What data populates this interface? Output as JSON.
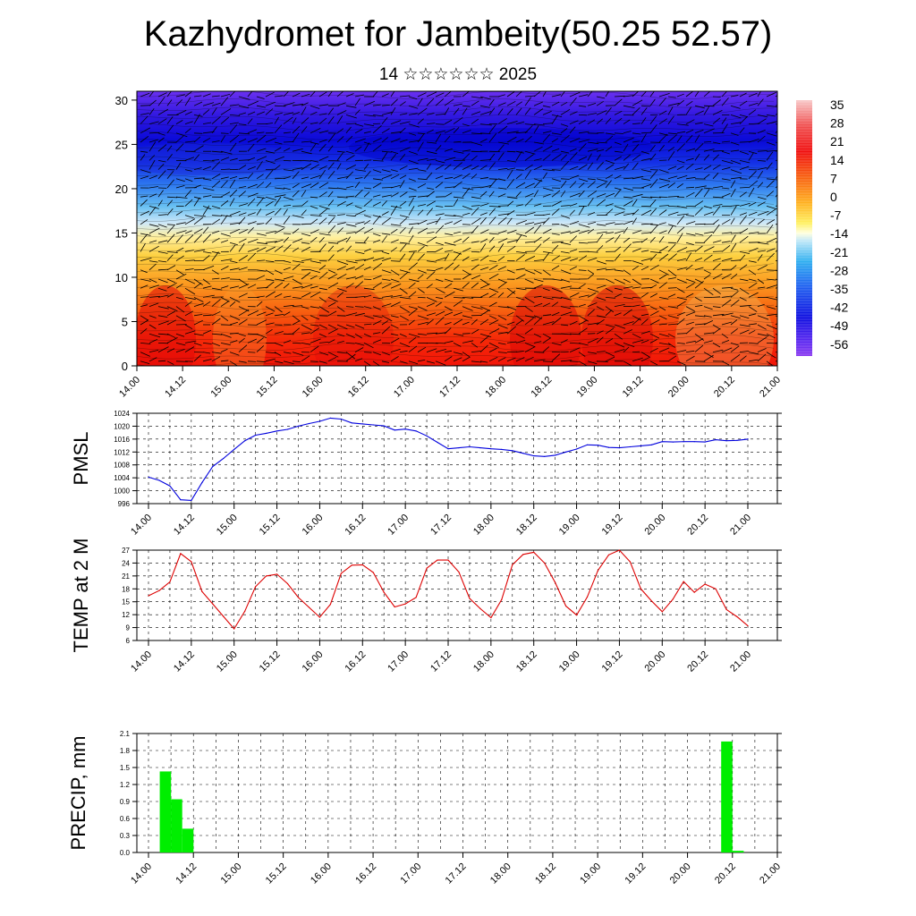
{
  "header": {
    "title": "Kazhydromet for Jambeity(50.25 52.57)",
    "subtitle": "14 ☆☆☆☆☆☆ 2025"
  },
  "colors": {
    "pmsl": "#0000dd",
    "temp": "#dd0000",
    "precip": "#00ee00"
  },
  "chart_data": [
    {
      "type": "heatmap",
      "name": "cross-section",
      "x_ticks": [
        "14.00",
        "14.12",
        "15.00",
        "15.12",
        "16.00",
        "16.12",
        "17.00",
        "17.12",
        "18.00",
        "18.12",
        "19.00",
        "19.12",
        "20.00",
        "20.12",
        "21.00"
      ],
      "y_ticks": [
        0,
        5,
        10,
        15,
        20,
        25,
        30
      ],
      "ylim": [
        0,
        31
      ],
      "colorbar": {
        "labels": [
          "35",
          "28",
          "21",
          "14",
          "7",
          "0",
          "-7",
          "-14",
          "-21",
          "-28",
          "-35",
          "-42",
          "-49",
          "-56"
        ],
        "range": [
          -63,
          42
        ]
      },
      "wind_vectors": true
    },
    {
      "type": "line",
      "name": "pmsl",
      "ylabel": "PMSL",
      "x_ticks": [
        "14.00",
        "14.12",
        "15.00",
        "15.12",
        "16.00",
        "16.12",
        "17.00",
        "17.12",
        "18.00",
        "18.12",
        "19.00",
        "19.12",
        "20.00",
        "20.12",
        "21.00"
      ],
      "y_ticks": [
        996,
        1000,
        1004,
        1008,
        1012,
        1016,
        1020,
        1024
      ],
      "ylim": [
        996,
        1024
      ],
      "xlim": [
        0,
        168
      ],
      "x": [
        0,
        3,
        6,
        9,
        12,
        15,
        18,
        21,
        24,
        27,
        30,
        33,
        36,
        39,
        42,
        45,
        48,
        51,
        54,
        57,
        60,
        63,
        66,
        69,
        72,
        75,
        78,
        81,
        84,
        87,
        90,
        93,
        96,
        99,
        102,
        105,
        108,
        111,
        114,
        117,
        120,
        123,
        126,
        129,
        132,
        135,
        138,
        141,
        144,
        147,
        150,
        153,
        156,
        159,
        162,
        165,
        168
      ],
      "values": [
        1004.2,
        1003.2,
        1001.5,
        997.2,
        997.0,
        1002.5,
        1007.5,
        1010.0,
        1012.8,
        1015.5,
        1017.2,
        1017.8,
        1018.5,
        1019.0,
        1020.0,
        1020.8,
        1021.5,
        1022.5,
        1022.2,
        1021.0,
        1020.7,
        1020.4,
        1020.1,
        1018.8,
        1019.1,
        1018.5,
        1017.0,
        1015.0,
        1013.0,
        1013.3,
        1013.6,
        1013.3,
        1013.0,
        1012.8,
        1012.4,
        1011.6,
        1010.8,
        1010.6,
        1011.0,
        1012.0,
        1012.9,
        1014.2,
        1014.1,
        1013.4,
        1013.3,
        1013.6,
        1013.9,
        1014.2,
        1015.2,
        1015.1,
        1015.2,
        1015.2,
        1015.1,
        1015.8,
        1015.5,
        1015.6,
        1016.0
      ]
    },
    {
      "type": "line",
      "name": "temp",
      "ylabel": "TEMP at 2 M",
      "x_ticks": [
        "14.00",
        "14.12",
        "15.00",
        "15.12",
        "16.00",
        "16.12",
        "17.00",
        "17.12",
        "18.00",
        "18.12",
        "19.00",
        "19.12",
        "20.00",
        "20.12",
        "21.00"
      ],
      "y_ticks": [
        6,
        9,
        12,
        15,
        18,
        21,
        24,
        27
      ],
      "ylim": [
        6,
        27
      ],
      "xlim": [
        0,
        168
      ],
      "x": [
        0,
        3,
        6,
        9,
        12,
        15,
        18,
        21,
        24,
        27,
        30,
        33,
        36,
        39,
        42,
        45,
        48,
        51,
        54,
        57,
        60,
        63,
        66,
        69,
        72,
        75,
        78,
        81,
        84,
        87,
        90,
        93,
        96,
        99,
        102,
        105,
        108,
        111,
        114,
        117,
        120,
        123,
        126,
        129,
        132,
        135,
        138,
        141,
        144,
        147,
        150,
        153,
        156,
        159,
        162,
        165,
        168
      ],
      "values": [
        16.4,
        17.6,
        19.6,
        26.2,
        24.3,
        17.4,
        14.5,
        11.6,
        8.7,
        12.8,
        18.5,
        21.0,
        21.4,
        19.2,
        16.0,
        13.7,
        11.4,
        14.4,
        21.6,
        23.5,
        23.6,
        21.8,
        17.2,
        13.8,
        14.5,
        16.0,
        22.8,
        24.7,
        24.7,
        21.9,
        15.8,
        13.4,
        11.3,
        15.5,
        23.6,
        26.0,
        26.5,
        24.0,
        19.5,
        14.0,
        11.9,
        16.1,
        22.3,
        25.9,
        27.0,
        24.3,
        18.0,
        15.2,
        12.7,
        15.6,
        19.7,
        17.2,
        19.1,
        18.0,
        13.2,
        11.5,
        9.4
      ]
    },
    {
      "type": "bar",
      "name": "precip",
      "ylabel": "PRECIP, mm",
      "x_ticks": [
        "14.00",
        "14.12",
        "15.00",
        "15.12",
        "16.00",
        "16.12",
        "17.00",
        "17.12",
        "18.00",
        "18.12",
        "19.00",
        "19.12",
        "20.00",
        "20.12",
        "21.00"
      ],
      "y_ticks": [
        "0.0",
        "0.3",
        "0.6",
        "0.9",
        "1.2",
        "1.5",
        "1.8",
        "2.1"
      ],
      "ylim": [
        0,
        2.1
      ],
      "xlim": [
        0,
        168
      ],
      "bars": [
        {
          "x0": 3,
          "x1": 6,
          "value": 1.43
        },
        {
          "x0": 6,
          "x1": 9,
          "value": 0.94
        },
        {
          "x0": 9,
          "x1": 12,
          "value": 0.42
        },
        {
          "x0": 153,
          "x1": 156,
          "value": 1.96
        },
        {
          "x0": 156,
          "x1": 159,
          "value": 0.03
        }
      ]
    }
  ]
}
